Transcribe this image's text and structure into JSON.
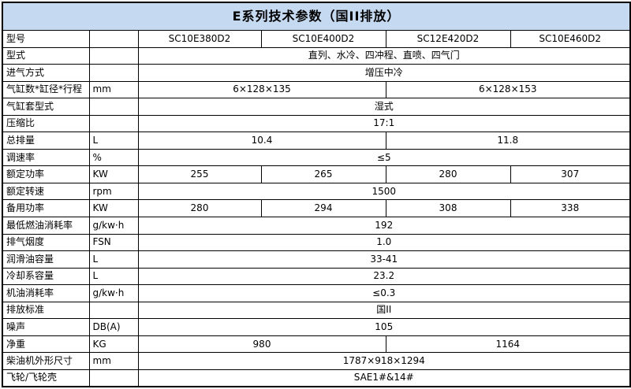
{
  "title": "E系列技术参数（国II排放）",
  "colors": {
    "banner_bg": "#c5d9f1",
    "border": "#000000",
    "cell_bg": "#ffffff"
  },
  "table": {
    "header_models": [
      "SC10E380D2",
      "SC10E400D2",
      "SC12E420D2",
      "SC10E460D2"
    ],
    "rows": [
      {
        "param": "型号",
        "unit": "",
        "values": [
          {
            "text": "SC10E380D2",
            "span": 1
          },
          {
            "text": "SC10E400D2",
            "span": 1
          },
          {
            "text": "SC12E420D2",
            "span": 1
          },
          {
            "text": "SC10E460D2",
            "span": 1
          }
        ]
      },
      {
        "param": "型式",
        "unit": "",
        "values": [
          {
            "text": "直列、水冷、四冲程、直喷、四气门",
            "span": 4
          }
        ]
      },
      {
        "param": "进气方式",
        "unit": "",
        "values": [
          {
            "text": "增压中冷",
            "span": 4
          }
        ]
      },
      {
        "param": "气缸数*缸径*行程",
        "unit": "mm",
        "values": [
          {
            "text": "6×128×135",
            "span": 2
          },
          {
            "text": "6×128×153",
            "span": 2
          }
        ]
      },
      {
        "param": "气缸套型式",
        "unit": "",
        "values": [
          {
            "text": "湿式",
            "span": 4
          }
        ]
      },
      {
        "param": "压缩比",
        "unit": "",
        "values": [
          {
            "text": "17:1",
            "span": 4
          }
        ]
      },
      {
        "param": "总排量",
        "unit": "L",
        "values": [
          {
            "text": "10.4",
            "span": 2
          },
          {
            "text": "11.8",
            "span": 2
          }
        ]
      },
      {
        "param": "调速率",
        "unit": "%",
        "values": [
          {
            "text": "≤5",
            "span": 4
          }
        ]
      },
      {
        "param": "额定功率",
        "unit": "KW",
        "values": [
          {
            "text": "255",
            "span": 1
          },
          {
            "text": "265",
            "span": 1
          },
          {
            "text": "280",
            "span": 1
          },
          {
            "text": "307",
            "span": 1
          }
        ]
      },
      {
        "param": "额定转速",
        "unit": "rpm",
        "values": [
          {
            "text": "1500",
            "span": 4
          }
        ]
      },
      {
        "param": "备用功率",
        "unit": "KW",
        "values": [
          {
            "text": "280",
            "span": 1
          },
          {
            "text": "294",
            "span": 1
          },
          {
            "text": "308",
            "span": 1
          },
          {
            "text": "338",
            "span": 1
          }
        ]
      },
      {
        "param": "最低燃油消耗率",
        "unit": "g/kw·h",
        "values": [
          {
            "text": "192",
            "span": 4
          }
        ]
      },
      {
        "param": "排气烟度",
        "unit": "FSN",
        "values": [
          {
            "text": "1.0",
            "span": 4
          }
        ]
      },
      {
        "param": "润滑油容量",
        "unit": "L",
        "values": [
          {
            "text": "33-41",
            "span": 4
          }
        ]
      },
      {
        "param": "冷却系容量",
        "unit": "L",
        "values": [
          {
            "text": "23.2",
            "span": 4
          }
        ]
      },
      {
        "param": "机油消耗率",
        "unit": "g/kw·h",
        "values": [
          {
            "text": "≤0.3",
            "span": 4
          }
        ]
      },
      {
        "param": "排放标准",
        "unit": "",
        "values": [
          {
            "text": "国II",
            "span": 4
          }
        ]
      },
      {
        "param": "噪声",
        "unit": "DB(A)",
        "values": [
          {
            "text": "105",
            "span": 4
          }
        ]
      },
      {
        "param": "净重",
        "unit": "KG",
        "values": [
          {
            "text": "980",
            "span": 2
          },
          {
            "text": "1164",
            "span": 2
          }
        ]
      },
      {
        "param": "柴油机外形尺寸",
        "unit": "mm",
        "values": [
          {
            "text": "1787×918×1294",
            "span": 4
          }
        ]
      },
      {
        "param": "飞轮/飞轮壳",
        "unit": "",
        "values": [
          {
            "text": "SAE1#&14#",
            "span": 4
          }
        ]
      }
    ]
  }
}
